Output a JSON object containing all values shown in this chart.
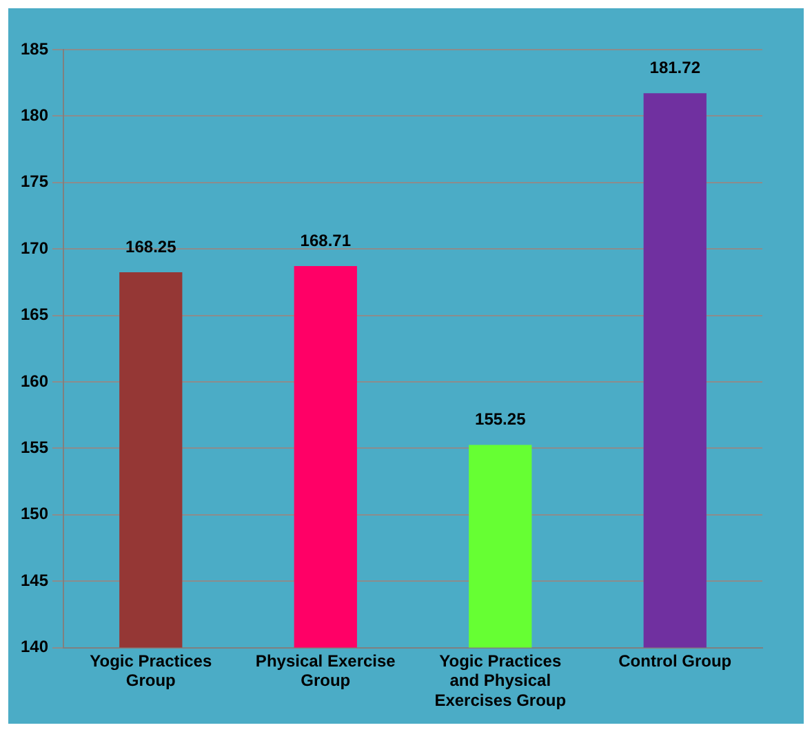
{
  "chart_data": {
    "type": "bar",
    "categories": [
      "Yogic Practices Group",
      "Physical Exercise Group",
      "Yogic Practices and Physical Exercises Group",
      "Control Group"
    ],
    "values": [
      168.25,
      168.71,
      155.25,
      181.72
    ],
    "colors": [
      "#953735",
      "#ff0066",
      "#66ff33",
      "#7030a0"
    ],
    "ylim": [
      140,
      185
    ],
    "yticks": [
      140,
      145,
      150,
      155,
      160,
      165,
      170,
      175,
      180,
      185
    ],
    "grid": "y",
    "data_labels": true
  }
}
